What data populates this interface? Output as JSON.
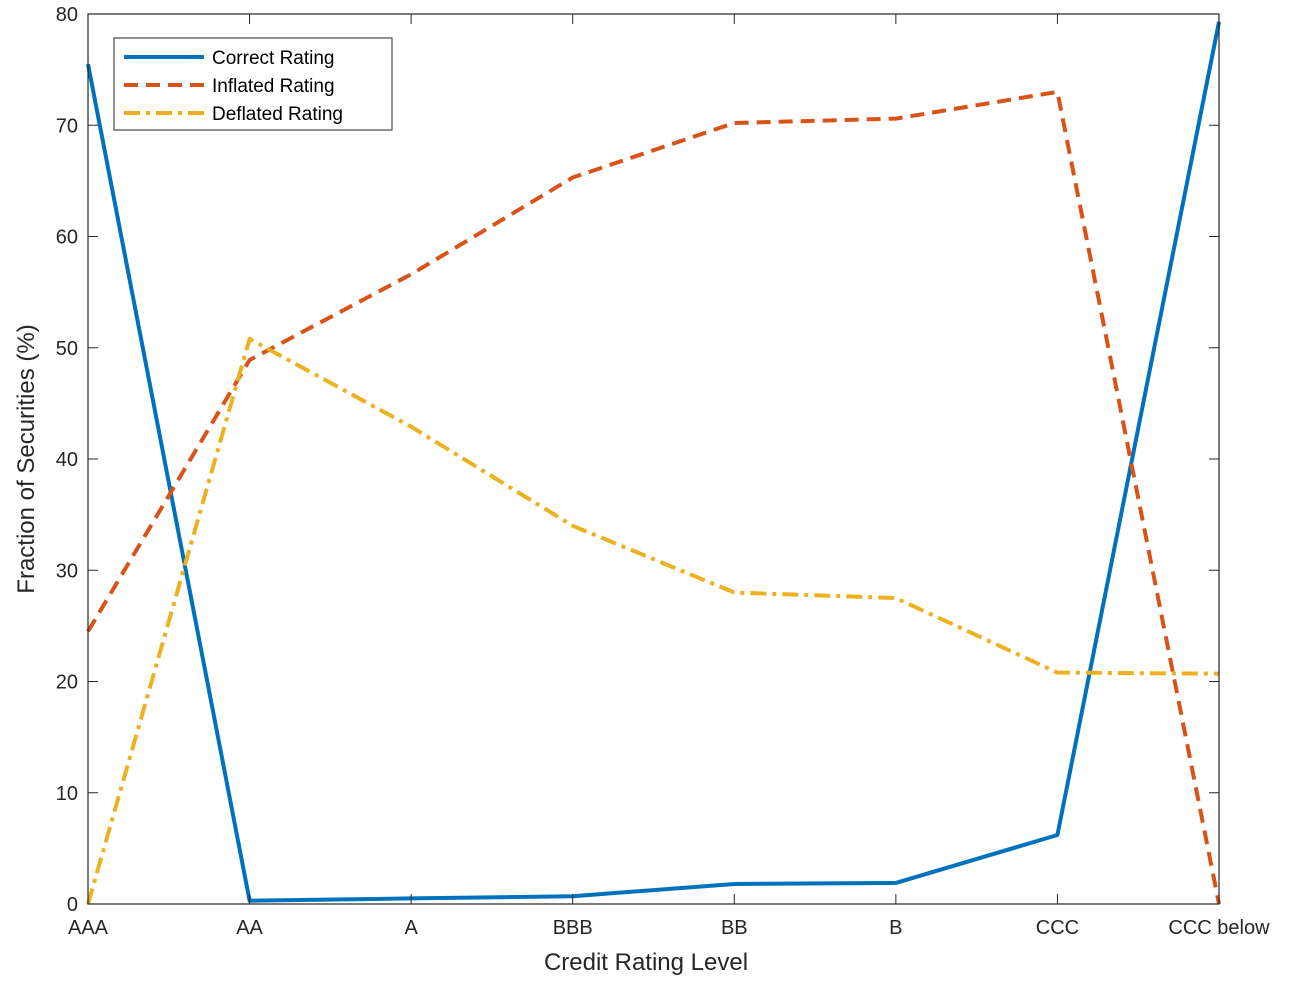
{
  "chart_data": {
    "type": "line",
    "xlabel": "Credit Rating Level",
    "ylabel": "Fraction of Securities (%)",
    "categories": [
      "AAA",
      "AA",
      "A",
      "BBB",
      "BB",
      "B",
      "CCC",
      "CCC below"
    ],
    "ylim": [
      0,
      80
    ],
    "yticks": [
      0,
      10,
      20,
      30,
      40,
      50,
      60,
      70,
      80
    ],
    "grid": false,
    "legend_position": "top-left",
    "series": [
      {
        "name": "Correct Rating",
        "color": "#0072BD",
        "style": "solid",
        "values": [
          75.5,
          0.3,
          0.5,
          0.7,
          1.8,
          1.9,
          6.2,
          79.3
        ]
      },
      {
        "name": "Inflated Rating",
        "color": "#D95319",
        "style": "dashed",
        "values": [
          24.5,
          48.9,
          56.6,
          65.3,
          70.2,
          70.6,
          73.0,
          0.0
        ]
      },
      {
        "name": "Deflated Rating",
        "color": "#EDB120",
        "style": "dashdot",
        "values": [
          0.0,
          50.8,
          42.9,
          34.0,
          28.0,
          27.5,
          20.8,
          20.7
        ]
      }
    ]
  }
}
